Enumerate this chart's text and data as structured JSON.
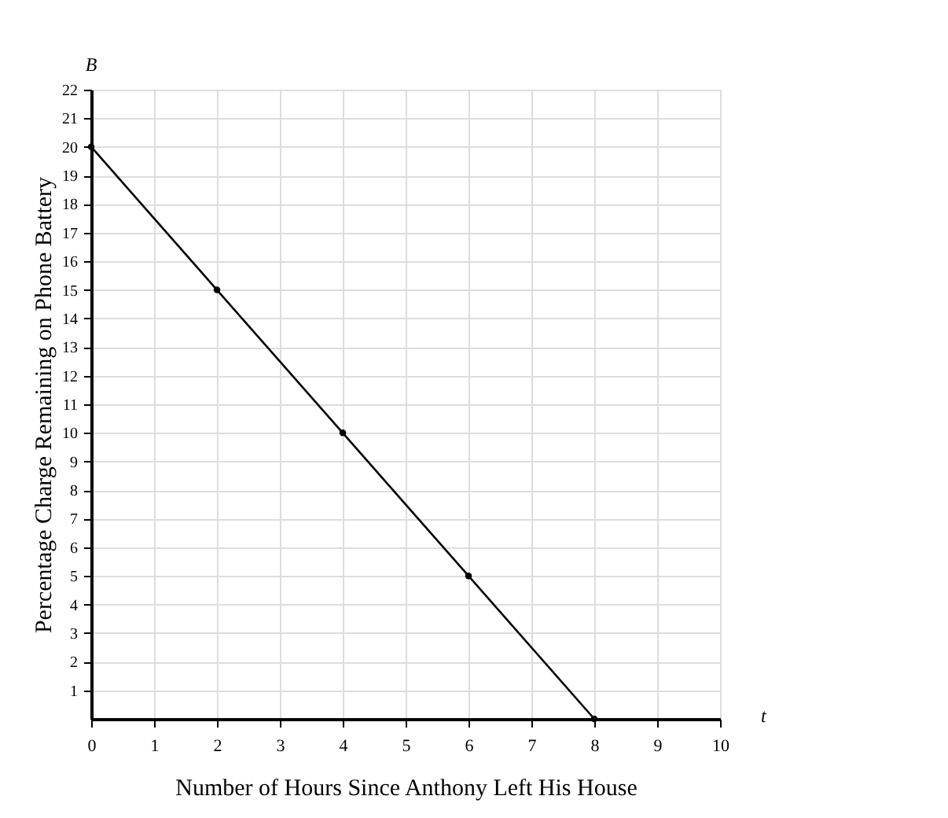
{
  "chart_data": {
    "type": "line",
    "xlabel": "Number of Hours Since Anthony Left His House",
    "ylabel": "Percentage Charge Remaining on Phone Battery",
    "x": [
      0,
      2,
      4,
      6,
      8
    ],
    "series": [
      {
        "color": "#000000",
        "values": [
          20,
          15,
          10,
          5,
          0
        ]
      }
    ],
    "xlim": [
      0,
      10
    ],
    "ylim": [
      0,
      22
    ],
    "xticks": [
      0,
      1,
      2,
      3,
      4,
      5,
      6,
      7,
      8,
      9,
      10
    ],
    "yticks": [
      1,
      2,
      3,
      4,
      5,
      6,
      7,
      8,
      9,
      10,
      11,
      12,
      13,
      14,
      15,
      16,
      17,
      18,
      19,
      20,
      21,
      22
    ],
    "grid": true,
    "marker": "circle",
    "line_style": "solid",
    "annotations": [
      "B",
      "t"
    ]
  }
}
